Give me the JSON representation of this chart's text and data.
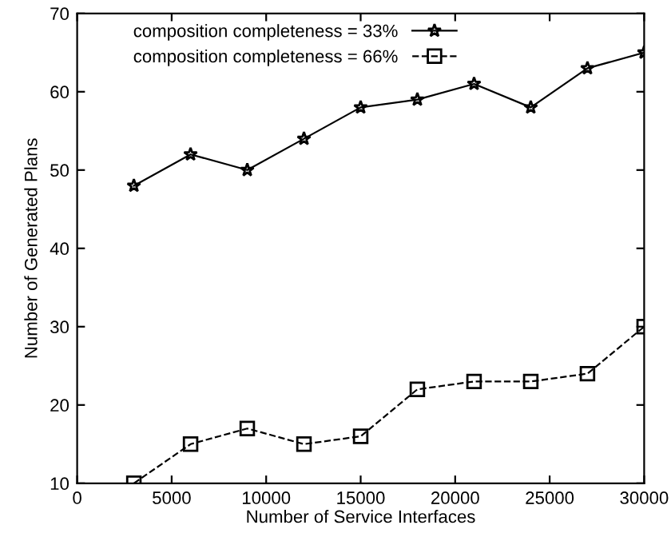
{
  "chart_data": {
    "type": "line",
    "xlabel": "Number of Service Interfaces",
    "ylabel": "Number of Generated Plans",
    "x": [
      3000,
      6000,
      9000,
      12000,
      15000,
      18000,
      21000,
      24000,
      27000,
      30000
    ],
    "series": [
      {
        "name": "composition completeness = 33%",
        "color": "#000000",
        "marker": "star",
        "line_style": "solid",
        "values": [
          48,
          52,
          50,
          54,
          58,
          59,
          61,
          58,
          63,
          65
        ]
      },
      {
        "name": "composition completeness = 66%",
        "color": "#000000",
        "marker": "square",
        "line_style": "dashed",
        "values": [
          10,
          15,
          17,
          15,
          16,
          22,
          23,
          23,
          24,
          30
        ]
      }
    ],
    "xlim": [
      0,
      30000
    ],
    "xticks": [
      0,
      5000,
      10000,
      15000,
      20000,
      25000,
      30000
    ],
    "ylim": [
      10,
      70
    ],
    "yticks": [
      10,
      20,
      30,
      40,
      50,
      60,
      70
    ],
    "grid": false,
    "legend": "top left"
  }
}
